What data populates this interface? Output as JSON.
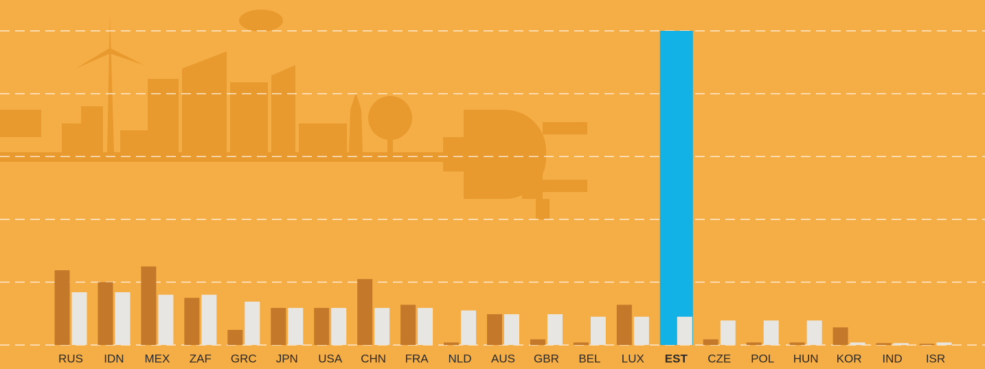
{
  "chart_data": {
    "type": "bar",
    "categories": [
      "RUS",
      "IDN",
      "MEX",
      "ZAF",
      "GRC",
      "JPN",
      "USA",
      "CHN",
      "FRA",
      "NLD",
      "AUS",
      "GBR",
      "BEL",
      "LUX",
      "EST",
      "CZE",
      "POL",
      "HUN",
      "KOR",
      "IND",
      "ISR"
    ],
    "series": [
      {
        "color": "#c47829",
        "values": [
          1.19,
          1.0,
          1.25,
          0.75,
          0.24,
          0.59,
          0.59,
          1.05,
          0.64,
          0.04,
          0.49,
          0.09,
          0.04,
          0.64,
          5.0,
          0.09,
          0.04,
          0.04,
          0.28,
          0.03,
          0.02
        ]
      },
      {
        "color": "#e8e6e3",
        "values": [
          0.84,
          0.84,
          0.8,
          0.8,
          0.69,
          0.59,
          0.59,
          0.59,
          0.59,
          0.55,
          0.49,
          0.49,
          0.45,
          0.45,
          0.45,
          0.39,
          0.39,
          0.39,
          0.04,
          0.03,
          0.04
        ]
      }
    ],
    "highlight": {
      "index": 14,
      "color": "#12b2e6"
    },
    "ylim": [
      0,
      5
    ],
    "yticks": [
      0,
      1,
      2,
      3,
      4,
      5
    ],
    "grid": true
  }
}
